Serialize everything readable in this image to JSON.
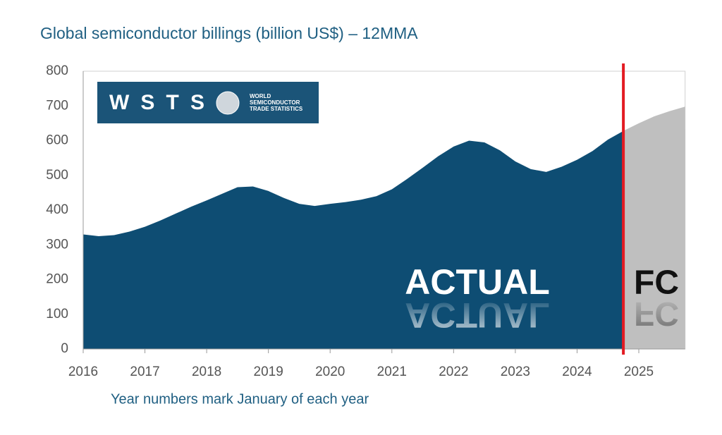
{
  "chart_data": {
    "type": "area",
    "title": "Global semiconductor billings (billion US$) – 12MMA",
    "x_label": "Year numbers mark January of each year",
    "xlim": [
      2016,
      2025.75
    ],
    "xticks": [
      2016,
      2017,
      2018,
      2019,
      2020,
      2021,
      2022,
      2023,
      2024,
      2025
    ],
    "ylim": [
      0,
      800
    ],
    "yticks": [
      0,
      100,
      200,
      300,
      400,
      500,
      600,
      700,
      800
    ],
    "series": [
      {
        "name": "ACTUAL",
        "color": "#0e4d73",
        "x": [
          2016,
          2016.25,
          2016.5,
          2016.75,
          2017,
          2017.25,
          2017.5,
          2017.75,
          2018,
          2018.25,
          2018.5,
          2018.75,
          2019,
          2019.25,
          2019.5,
          2019.75,
          2020,
          2020.25,
          2020.5,
          2020.75,
          2021,
          2021.25,
          2021.5,
          2021.75,
          2022,
          2022.25,
          2022.5,
          2022.75,
          2023,
          2023.25,
          2023.5,
          2023.75,
          2024,
          2024.25,
          2024.5,
          2024.75
        ],
        "values": [
          330,
          325,
          328,
          338,
          352,
          370,
          390,
          410,
          428,
          447,
          466,
          468,
          455,
          435,
          418,
          412,
          418,
          423,
          430,
          440,
          460,
          490,
          522,
          555,
          583,
          600,
          595,
          572,
          540,
          518,
          510,
          525,
          545,
          570,
          603,
          628
        ]
      },
      {
        "name": "FC",
        "color": "#bfbfbf",
        "x": [
          2024.75,
          2025,
          2025.25,
          2025.5,
          2025.75
        ],
        "values": [
          628,
          650,
          670,
          685,
          698
        ]
      }
    ],
    "forecast_start": 2024.75,
    "marker_color": "#e31b23",
    "logo": {
      "name": "WSTS",
      "lines": [
        "WORLD",
        "SEMICONDUCTOR",
        "TRADE STATISTICS"
      ]
    }
  }
}
